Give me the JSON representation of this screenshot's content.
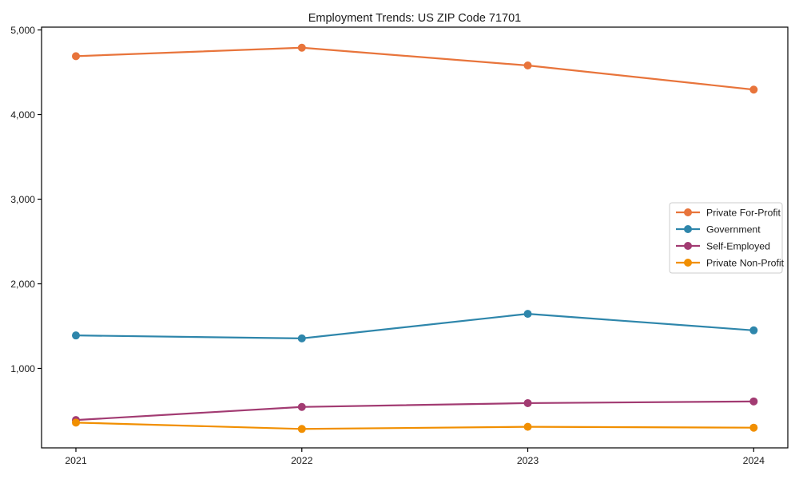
{
  "chart": {
    "title": "Employment Trends: US ZIP Code 71701"
  },
  "chart_data": {
    "type": "line",
    "title": "Employment Trends: US ZIP Code 71701",
    "xlabel": "",
    "ylabel": "",
    "categories": [
      "2021",
      "2022",
      "2023",
      "2024"
    ],
    "series": [
      {
        "name": "Private For-Profit",
        "color": "#E8743B",
        "values": [
          4690,
          4790,
          4580,
          4295
        ]
      },
      {
        "name": "Government",
        "color": "#2E86AB",
        "values": [
          1390,
          1355,
          1645,
          1450
        ]
      },
      {
        "name": "Self-Employed",
        "color": "#A23B72",
        "values": [
          390,
          545,
          590,
          610
        ]
      },
      {
        "name": "Private Non-Profit",
        "color": "#F18F01",
        "values": [
          360,
          285,
          310,
          300
        ]
      }
    ],
    "y_ticks": {
      "values": [
        1000,
        2000,
        3000,
        4000,
        5000
      ],
      "labels": [
        "1,000",
        "2,000",
        "3,000",
        "4,000",
        "5,000"
      ]
    },
    "ylim": [
      60,
      5040
    ],
    "grid": false,
    "marker": "circle",
    "legend": {
      "position": "center-right",
      "entries": [
        "Private For-Profit",
        "Government",
        "Self-Employed",
        "Private Non-Profit"
      ]
    },
    "axis_color": "#000000",
    "legend_border_color": "#cccccc",
    "background_color": "#ffffff"
  }
}
